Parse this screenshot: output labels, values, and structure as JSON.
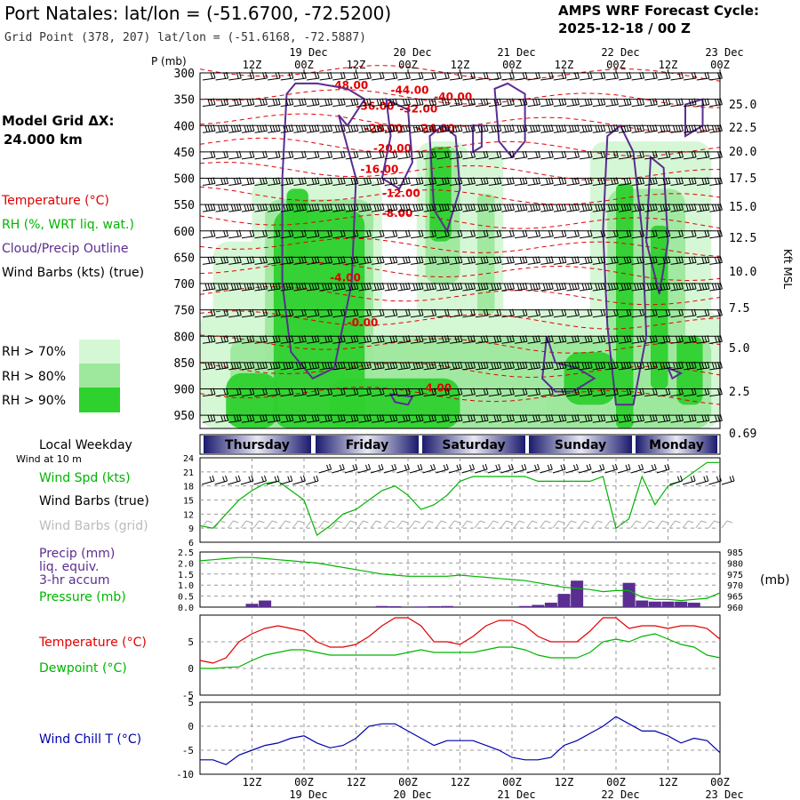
{
  "header": {
    "station_title": "Port Natales:  lat/lon = (-51.6700, -72.5200)",
    "grid_point": "Grid Point (378, 207) lat/lon = (-51.6168, -72.5887)",
    "forecast_label": "AMPS WRF Forecast Cycle:",
    "cycle": "2025-12-18 / 00  Z",
    "model_grid_label": "Model Grid ΔX:",
    "model_grid_value": "24.000 km"
  },
  "legend": {
    "temperature": "Temperature (°C)",
    "rh": "RH (%, WRT liq. wat.)",
    "cloud": "Cloud/Precip Outline",
    "wind_barbs": "Wind Barbs (kts) (true)",
    "rh70": "RH > 70%",
    "rh80": "RH > 80%",
    "rh90": "RH > 90%",
    "colors": {
      "temperature": "#e00000",
      "rh70": "#d4f7d4",
      "rh80": "#9ee89e",
      "rh90": "#2ed12e",
      "cloud": "#5a2d91",
      "wind_spd": "#00b400",
      "precip": "#5a2d91",
      "dewpoint": "#00b400",
      "windchill": "#0000aa"
    }
  },
  "chart_data": [
    {
      "id": "sounding",
      "type": "heatmap",
      "ylabel": "P (mb)",
      "right_label": "Kft MSL",
      "time_top_ticks": [
        "12Z",
        "00Z",
        "12Z",
        "00Z",
        "12Z",
        "00Z",
        "12Z",
        "00Z",
        "12Z",
        "00Z"
      ],
      "time_top_dates": [
        "19 Dec",
        "20 Dec",
        "21 Dec",
        "22 Dec",
        "23 Dec"
      ],
      "pressure_levels": [
        300,
        350,
        400,
        450,
        500,
        550,
        600,
        650,
        700,
        750,
        800,
        850,
        900,
        950
      ],
      "height_kft": [
        "25.0",
        "22.5",
        "20.0",
        "17.5",
        "15.0",
        "12.5",
        "10.0",
        "7.5",
        "5.0",
        "2.5",
        "0.69"
      ],
      "temperature_labels": [
        "-48.00",
        "-44.00",
        "-40.00",
        "-36.00",
        "-32.00",
        "-28.00",
        "-24.00",
        "-20.00",
        "-16.00",
        "-12.00",
        "-8.00",
        "-4.00",
        "-0.00",
        "4.00"
      ],
      "hours_from_start": [
        0,
        12,
        24,
        36,
        48,
        60,
        72,
        84,
        96,
        108,
        120
      ]
    },
    {
      "id": "weekday",
      "title": "Local Weekday",
      "days": [
        "Thursday",
        "Friday",
        "Saturday",
        "Sunday",
        "Monday"
      ]
    },
    {
      "id": "wind",
      "type": "line",
      "note": "Wind at 10 m",
      "labels": {
        "speed": "Wind Spd (kts)",
        "barbs_true": "Wind Barbs (true)",
        "barbs_grid": "Wind Barbs (grid)"
      },
      "yticks": [
        "24",
        "21",
        "18",
        "15",
        "12",
        "9",
        "6"
      ],
      "ylim": [
        6,
        24
      ],
      "x_hours": [
        0,
        3,
        6,
        9,
        12,
        15,
        18,
        21,
        24,
        27,
        30,
        33,
        36,
        39,
        42,
        45,
        48,
        51,
        54,
        57,
        60,
        63,
        66,
        69,
        72,
        75,
        78,
        81,
        84,
        87,
        90,
        93,
        96,
        99,
        102,
        105,
        108,
        111,
        114,
        117,
        120
      ],
      "speed": [
        9.5,
        9,
        12,
        15,
        17,
        18.5,
        19,
        17,
        15,
        7.5,
        9.5,
        12,
        13,
        15,
        17,
        18,
        16,
        13,
        14,
        16,
        19,
        20,
        20,
        20,
        20,
        20,
        19,
        19,
        19,
        19,
        19,
        20,
        9,
        11,
        20,
        14,
        18,
        19,
        21,
        23,
        23
      ]
    },
    {
      "id": "precip_pressure",
      "type": "bar",
      "labels": {
        "precip": "Precip (mm)",
        "liq": "liq. equiv.",
        "accum": "3-hr accum",
        "pressure": "Pressure (mb)",
        "pressure_unit": "(mb)"
      },
      "left_ticks": [
        "2.5",
        "2.0",
        "1.5",
        "1.0",
        "0.5",
        "0.0"
      ],
      "right_ticks": [
        "985",
        "980",
        "975",
        "970",
        "965",
        "960"
      ],
      "precip_ylim": [
        0,
        2.5
      ],
      "pressure_ylim": [
        960,
        985
      ],
      "x_hours": [
        0,
        3,
        6,
        9,
        12,
        15,
        18,
        21,
        24,
        27,
        30,
        33,
        36,
        39,
        42,
        45,
        48,
        51,
        54,
        57,
        60,
        63,
        66,
        69,
        72,
        75,
        78,
        81,
        84,
        87,
        90,
        93,
        96,
        99,
        102,
        105,
        108,
        111,
        114,
        117,
        120
      ],
      "precip": [
        0,
        0,
        0,
        0,
        0.15,
        0.3,
        0,
        0,
        0,
        0,
        0,
        0,
        0,
        0,
        0.05,
        0.04,
        0,
        0.03,
        0.04,
        0.05,
        0,
        0,
        0,
        0,
        0,
        0.05,
        0.1,
        0.2,
        0.6,
        1.2,
        0,
        0,
        0,
        1.1,
        0.3,
        0.25,
        0.25,
        0.25,
        0.2,
        0,
        0
      ],
      "pressure": [
        981,
        981.5,
        982,
        982.5,
        982.5,
        982,
        981.5,
        981,
        980.5,
        980,
        979,
        978,
        977,
        976,
        975,
        974.5,
        974,
        974,
        974,
        974,
        974.5,
        974,
        973.5,
        973,
        972.5,
        972,
        971,
        970,
        969,
        968.5,
        968,
        967,
        967.5,
        967.5,
        964.5,
        963.5,
        963.5,
        963,
        963.5,
        964,
        966.5
      ]
    },
    {
      "id": "temperature",
      "type": "line",
      "labels": {
        "temperature": "Temperature (°C)",
        "dewpoint": "Dewpoint (°C)"
      },
      "yticks": [
        "5",
        "0",
        "-5"
      ],
      "ylim": [
        -5,
        10
      ],
      "x_hours": [
        0,
        3,
        6,
        9,
        12,
        15,
        18,
        21,
        24,
        27,
        30,
        33,
        36,
        39,
        42,
        45,
        48,
        51,
        54,
        57,
        60,
        63,
        66,
        69,
        72,
        75,
        78,
        81,
        84,
        87,
        90,
        93,
        96,
        99,
        102,
        105,
        108,
        111,
        114,
        117,
        120
      ],
      "temperature": [
        1.5,
        1,
        2,
        5,
        6.5,
        7.5,
        8,
        7.5,
        7,
        5,
        4,
        4,
        4.5,
        6,
        8,
        9.5,
        9.5,
        8,
        5,
        5,
        4.5,
        6,
        8,
        9,
        9,
        8,
        6,
        5,
        5,
        5,
        7,
        9.5,
        9.5,
        7.5,
        8,
        8,
        7.5,
        8,
        8,
        7.5,
        5.5
      ],
      "dewpoint": [
        0,
        0,
        0.2,
        0.3,
        1.5,
        2.5,
        3,
        3.5,
        3.5,
        3,
        2.5,
        2.5,
        2.5,
        2.5,
        2.5,
        2.5,
        3,
        3.5,
        3,
        3,
        3,
        3,
        3.5,
        4,
        4,
        3.5,
        2.5,
        2,
        2,
        2,
        3,
        5,
        5.5,
        5,
        6,
        6.5,
        5.5,
        4.5,
        4,
        2.5,
        2
      ]
    },
    {
      "id": "windchill",
      "type": "line",
      "labels": {
        "windchill": "Wind Chill T (°C)"
      },
      "yticks": [
        "5",
        "0",
        "-5",
        "-10"
      ],
      "ylim": [
        -10,
        5
      ],
      "x_hours": [
        0,
        3,
        6,
        9,
        12,
        15,
        18,
        21,
        24,
        27,
        30,
        33,
        36,
        39,
        42,
        45,
        48,
        51,
        54,
        57,
        60,
        63,
        66,
        69,
        72,
        75,
        78,
        81,
        84,
        87,
        90,
        93,
        96,
        99,
        102,
        105,
        108,
        111,
        114,
        117,
        120
      ],
      "windchill": [
        -7,
        -7,
        -8,
        -6,
        -5,
        -4,
        -3.5,
        -2.5,
        -2,
        -3.5,
        -4.5,
        -4,
        -2.5,
        0,
        0.5,
        0.5,
        -1,
        -2.5,
        -4,
        -3,
        -3,
        -3,
        -4,
        -5,
        -6.5,
        -7,
        -7,
        -6.5,
        -4,
        -3,
        -1.5,
        0,
        2,
        0.5,
        -1,
        -1,
        -2,
        -3.5,
        -2.5,
        -3,
        -5.5
      ],
      "bottom_ticks": [
        "12Z",
        "00Z",
        "12Z",
        "00Z",
        "12Z",
        "00Z",
        "12Z",
        "00Z",
        "12Z",
        "00Z"
      ],
      "bottom_dates": [
        "19 Dec",
        "20 Dec",
        "21 Dec",
        "22 Dec",
        "23 Dec"
      ]
    }
  ]
}
